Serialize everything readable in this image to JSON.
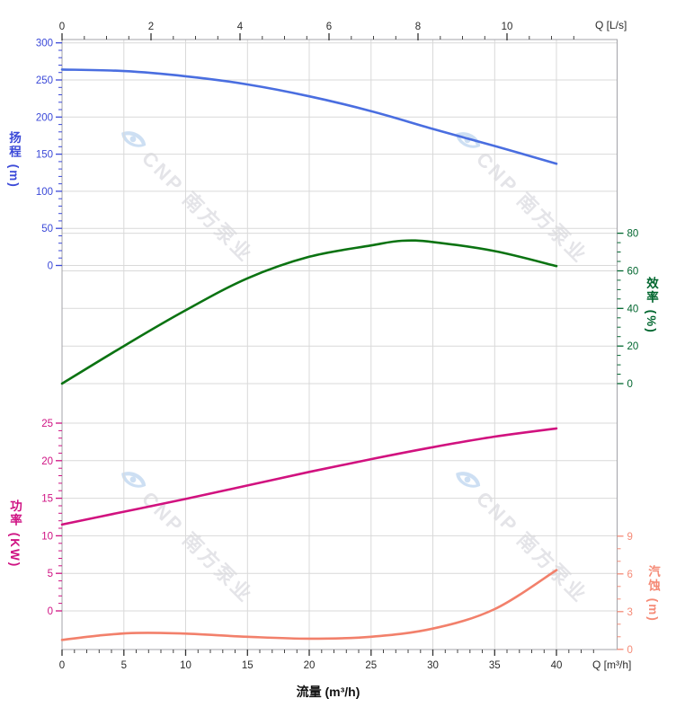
{
  "watermark": {
    "text": "CNP 南方泵业",
    "logo": "cnp-eye-logo",
    "logo_color": "#cddff3",
    "text_color": "#e4e4e8"
  },
  "chart_data": {
    "type": "line",
    "title": "",
    "x_bottom": {
      "title": "流量 (m³/h)",
      "unit": "Q [m³/h]",
      "ticks": [
        0,
        5,
        10,
        15,
        20,
        25,
        30,
        35,
        40
      ],
      "range": [
        0,
        40
      ],
      "grid": true
    },
    "x_top": {
      "unit": "Q [L/s]",
      "ticks": [
        0,
        2,
        4,
        6,
        8,
        10
      ]
    },
    "axes": {
      "head": {
        "title": "扬程 (m)",
        "side": "left",
        "ticks": [
          300,
          250,
          200,
          150,
          100,
          50,
          0
        ],
        "color": "#3b49d8"
      },
      "efficiency": {
        "title": "效率 (%)",
        "side": "right",
        "ticks": [
          80,
          60,
          40,
          20,
          0
        ],
        "color": "#00662e"
      },
      "power": {
        "title": "功率 (KW)",
        "side": "left",
        "ticks": [
          25,
          20,
          15,
          10,
          5,
          0
        ],
        "color": "#cf1283"
      },
      "npsh": {
        "title": "汽蚀 (m)",
        "side": "right",
        "ticks": [
          9,
          6,
          3,
          0
        ],
        "color": "#f58a76"
      }
    },
    "series": [
      {
        "name": "扬程",
        "axis": "head",
        "color": "#4a6ee0",
        "x": [
          0,
          5,
          10,
          15,
          20,
          25,
          30,
          35,
          40
        ],
        "y": [
          264,
          262,
          255,
          244,
          228,
          208,
          184,
          161,
          137
        ]
      },
      {
        "name": "效率",
        "axis": "efficiency",
        "color": "#0b7312",
        "x": [
          0,
          5,
          10,
          15,
          20,
          25,
          27.5,
          30,
          35,
          40
        ],
        "y": [
          0,
          20,
          39,
          56,
          67.5,
          73.5,
          76,
          75.3,
          70.5,
          62.5
        ]
      },
      {
        "name": "功率",
        "axis": "power",
        "color": "#d1127f",
        "x": [
          0,
          5,
          10,
          15,
          20,
          25,
          30,
          35,
          40
        ],
        "y": [
          11.5,
          13.2,
          14.9,
          16.7,
          18.5,
          20.2,
          21.8,
          23.2,
          24.3
        ]
      },
      {
        "name": "汽蚀",
        "axis": "npsh",
        "color": "#f2806b",
        "x": [
          0,
          3,
          6,
          10,
          15,
          20,
          25,
          30,
          35,
          40
        ],
        "y": [
          0.75,
          1.1,
          1.3,
          1.25,
          1.0,
          0.85,
          1.0,
          1.65,
          3.2,
          6.3
        ]
      }
    ],
    "legend": "none",
    "grid": "on"
  }
}
